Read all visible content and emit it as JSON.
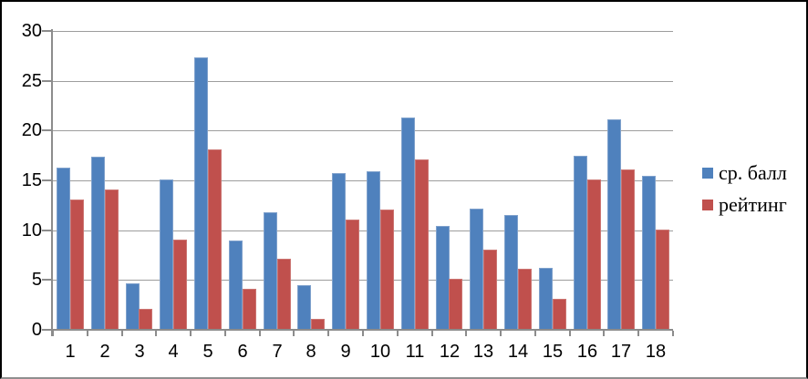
{
  "chart_data": {
    "type": "bar",
    "title": "",
    "xlabel": "",
    "ylabel": "",
    "categories": [
      "1",
      "2",
      "3",
      "4",
      "5",
      "6",
      "7",
      "8",
      "9",
      "10",
      "11",
      "12",
      "13",
      "14",
      "15",
      "16",
      "17",
      "18"
    ],
    "series": [
      {
        "name": "ср. балл",
        "color": "#4F81BD",
        "edge_color": "#7FA1CC",
        "values": [
          16.2,
          17.3,
          4.6,
          15.0,
          27.3,
          8.9,
          11.7,
          4.4,
          15.6,
          15.8,
          21.2,
          10.3,
          12.1,
          11.4,
          6.1,
          17.4,
          21.0,
          15.4
        ]
      },
      {
        "name": "рейтинг",
        "color": "#C0504D",
        "edge_color": "#CC7673",
        "values": [
          13,
          14,
          2,
          9,
          18,
          4,
          7,
          1,
          11,
          12,
          17,
          5,
          8,
          6,
          3,
          15,
          16,
          10
        ]
      }
    ],
    "ylim": [
      0,
      30
    ],
    "y_ticks": [
      0,
      5,
      10,
      15,
      20,
      25,
      30
    ],
    "grid": true,
    "legend_position": "right",
    "gridline_color": "#9d9d9d",
    "axis_color": "#8c8c8c",
    "text_color": "#000000"
  }
}
